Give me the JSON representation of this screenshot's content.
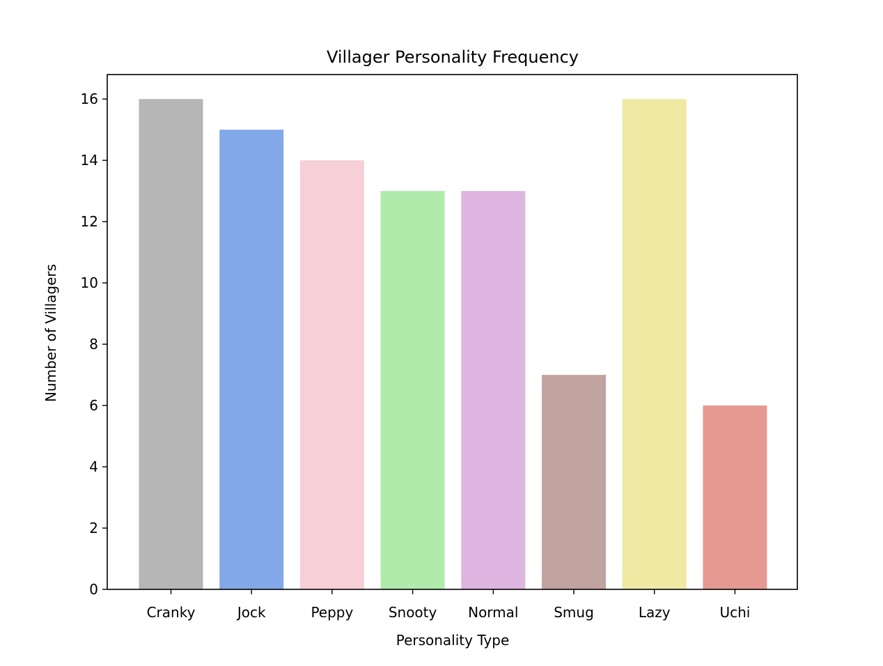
{
  "chart_data": {
    "type": "bar",
    "title": "Villager Personality Frequency",
    "xlabel": "Personality Type",
    "ylabel": "Number of Villagers",
    "categories": [
      "Cranky",
      "Jock",
      "Peppy",
      "Snooty",
      "Normal",
      "Smug",
      "Lazy",
      "Uchi"
    ],
    "values": [
      16,
      15,
      14,
      13,
      13,
      7,
      16,
      6
    ],
    "colors": [
      "#b6b6b6",
      "#82a8e9",
      "#f7cfd6",
      "#b1ebab",
      "#deb4e0",
      "#c1a3a0",
      "#f0e9a3",
      "#e69991"
    ],
    "ylim": [
      0,
      16.8
    ],
    "yticks": [
      "0",
      "2",
      "4",
      "6",
      "8",
      "10",
      "12",
      "14",
      "16"
    ],
    "grid": false,
    "legend": "none"
  }
}
